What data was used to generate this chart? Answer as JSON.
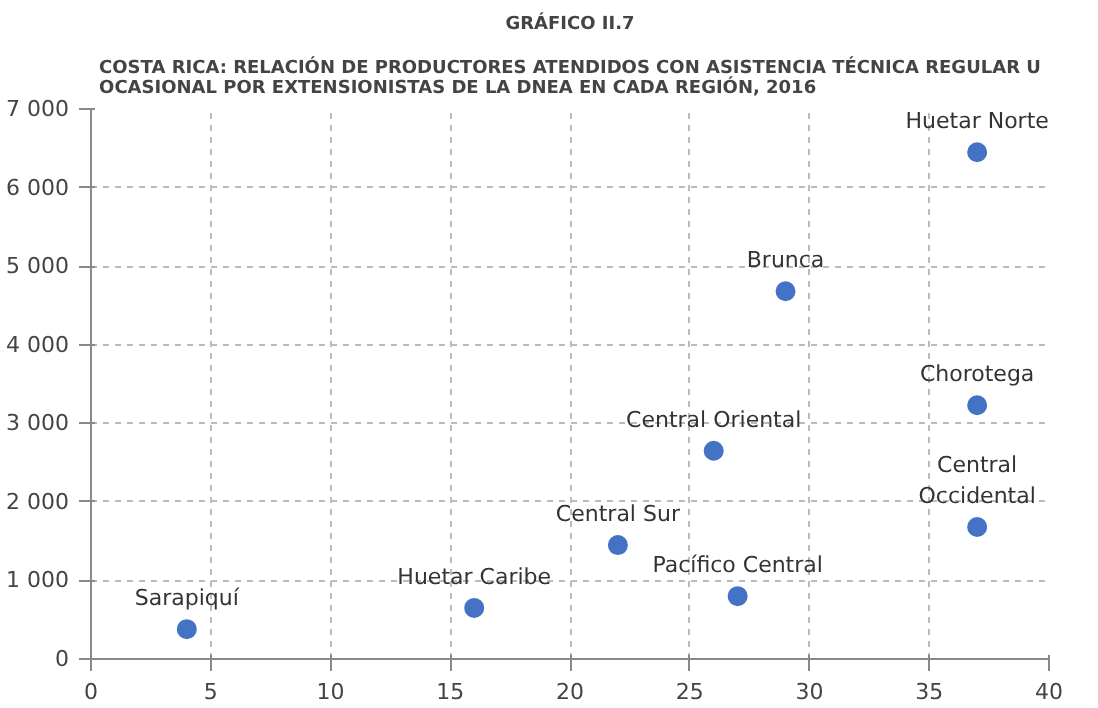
{
  "chart_data": {
    "type": "scatter",
    "subtitle": "GRÁFICO II.7",
    "title": "COSTA RICA: RELACIÓN DE PRODUCTORES ATENDIDOS CON ASISTENCIA TÉCNICA REGULAR U\nOCASIONAL POR EXTENSIONISTAS DE LA DNEA EN CADA REGIÓN, 2016",
    "x": [
      4,
      16,
      22,
      27,
      26,
      29,
      37,
      37,
      37
    ],
    "values": [
      380,
      650,
      1450,
      800,
      2650,
      4680,
      6450,
      3230,
      1680
    ],
    "color": "#4472c4",
    "marker": "circle",
    "xlim": [
      0,
      40
    ],
    "xticks": [
      0,
      5,
      10,
      15,
      20,
      25,
      30,
      35,
      40
    ],
    "ylim": [
      0,
      7000
    ],
    "yticks": [
      {
        "value": 0,
        "label": "0"
      },
      {
        "value": 1000,
        "label": "1 000"
      },
      {
        "value": 2000,
        "label": "2 000"
      },
      {
        "value": 3000,
        "label": "3 000"
      },
      {
        "value": 4000,
        "label": "4 000"
      },
      {
        "value": 5000,
        "label": "5 000"
      },
      {
        "value": 6000,
        "label": "6 000"
      },
      {
        "value": 7000,
        "label": "7 000"
      }
    ],
    "grid": true,
    "annotations": [
      {
        "text": "Sarapiquí",
        "x": 4,
        "y": 380
      },
      {
        "text": "Huetar Caribe",
        "x": 16,
        "y": 650
      },
      {
        "text": "Central Sur",
        "x": 22,
        "y": 1450
      },
      {
        "text": "Pacífico Central",
        "x": 27,
        "y": 800
      },
      {
        "text": "Central Oriental",
        "x": 26,
        "y": 2650
      },
      {
        "text": "Brunca",
        "x": 29,
        "y": 4680
      },
      {
        "text": "Huetar Norte",
        "x": 37,
        "y": 6450
      },
      {
        "text": "Chorotega",
        "x": 37,
        "y": 3230
      },
      {
        "text": "Central\nOccidental",
        "x": 37,
        "y": 1680
      }
    ]
  }
}
